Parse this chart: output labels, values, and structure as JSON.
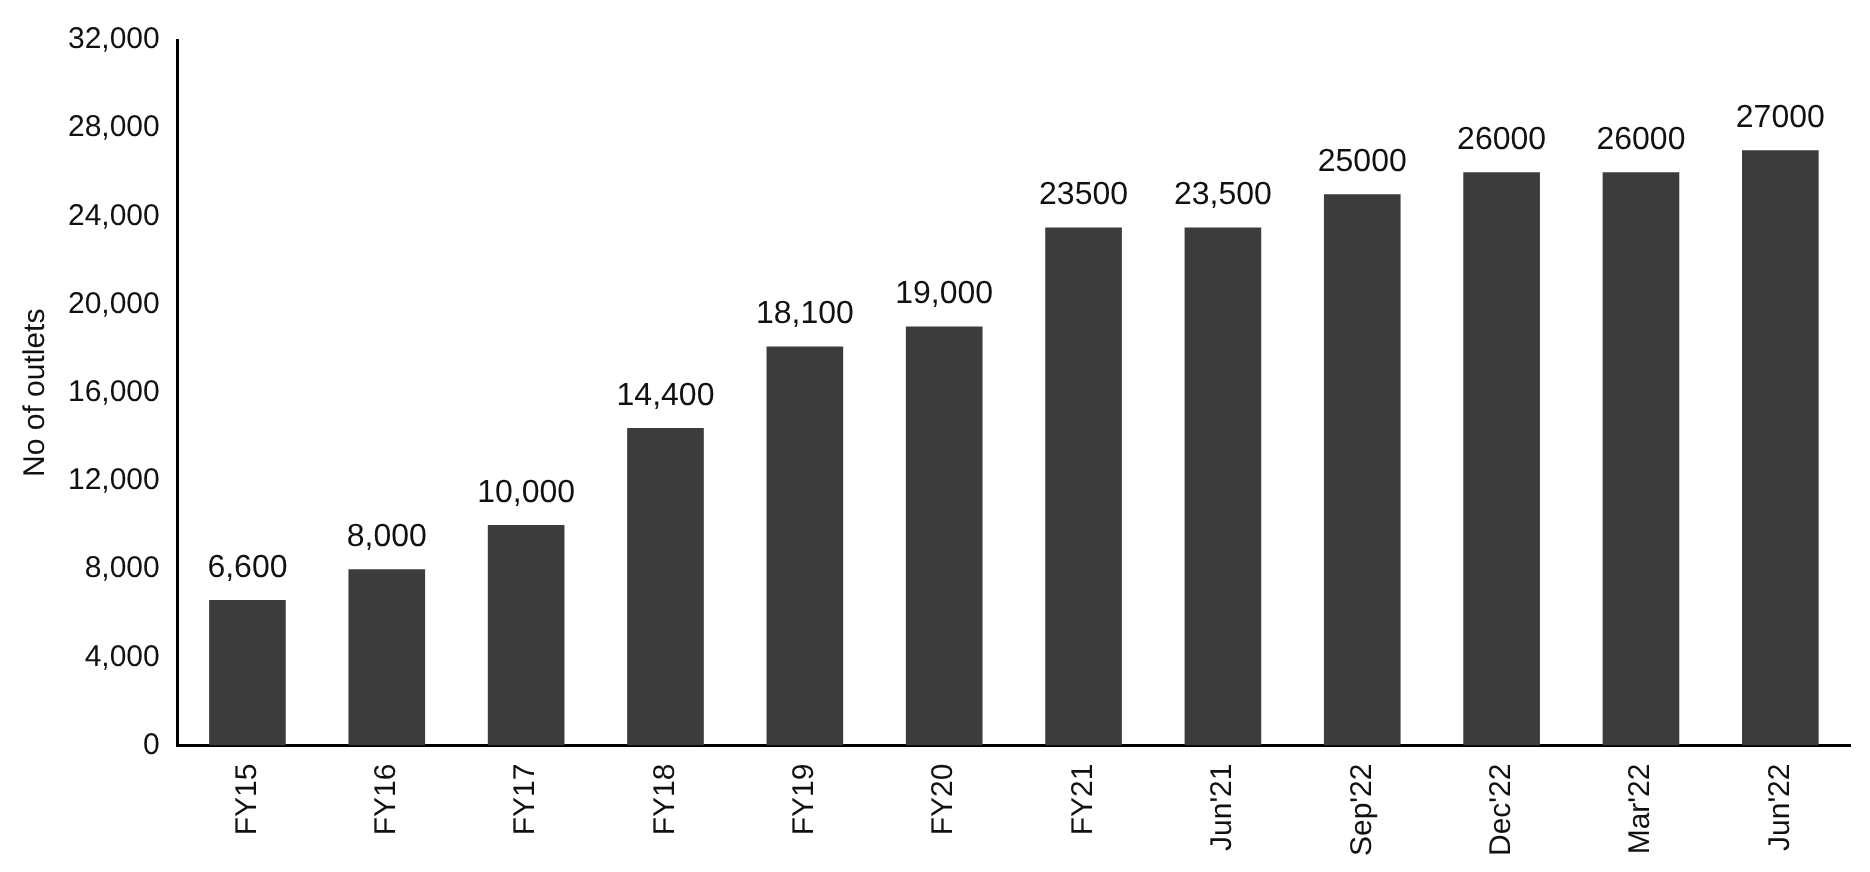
{
  "chart_data": {
    "type": "bar",
    "ylabel": "No of outlets",
    "categories": [
      "FY15",
      "FY16",
      "FY17",
      "FY18",
      "FY19",
      "FY20",
      "FY21",
      "Jun'21",
      "Sep'22",
      "Dec'22",
      "Mar'22",
      "Jun'22"
    ],
    "values": [
      6600,
      8000,
      10000,
      14400,
      18100,
      19000,
      23500,
      23500,
      25000,
      26000,
      26000,
      27000
    ],
    "value_labels": [
      "6,600",
      "8,000",
      "10,000",
      "14,400",
      "18,100",
      "19,000",
      "23500",
      "23,500",
      "25000",
      "26000",
      "26000",
      "27000"
    ],
    "color": "#3c3c3c",
    "ylim": [
      0,
      32000
    ],
    "yticks": [
      {
        "value": 0,
        "label": "0"
      },
      {
        "value": 4000,
        "label": "4,000"
      },
      {
        "value": 8000,
        "label": "8,000"
      },
      {
        "value": 12000,
        "label": "12,000"
      },
      {
        "value": 16000,
        "label": "16,000"
      },
      {
        "value": 20000,
        "label": "20,000"
      },
      {
        "value": 24000,
        "label": "24,000"
      },
      {
        "value": 28000,
        "label": "28,000"
      },
      {
        "value": 32000,
        "label": "32,000"
      }
    ],
    "grid": false,
    "legend": false
  }
}
